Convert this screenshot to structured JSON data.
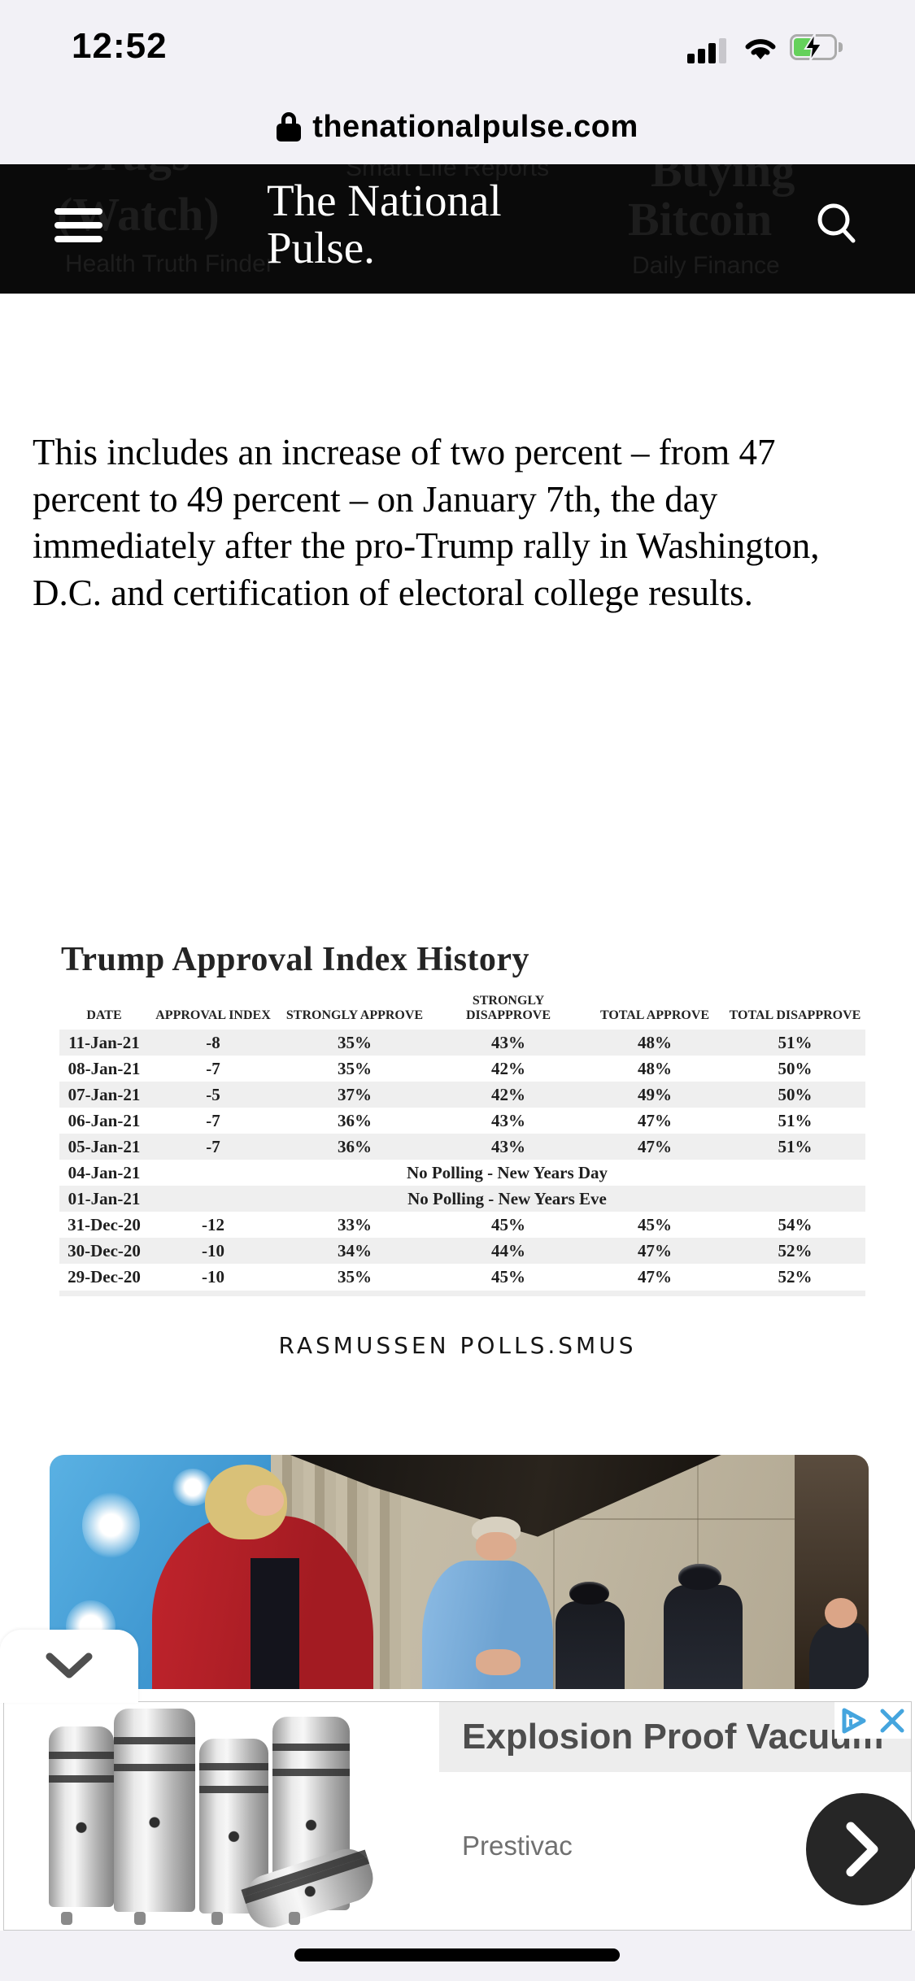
{
  "status_bar": {
    "time": "12:52"
  },
  "url_bar": {
    "domain": "thenationalpulse.com"
  },
  "header": {
    "title_line1": "The National",
    "title_line2": "Pulse.",
    "ghost": {
      "left_big_1": "Drugs",
      "left_big_2": "(Watch)",
      "left_small": "Health Truth Finder",
      "center_small": "Smart Life Reports",
      "right_big_1": "Buying",
      "right_big_2": "Bitcoin",
      "right_small": "Daily Finance"
    }
  },
  "article": {
    "paragraph": "This includes an increase of two percent – from 47 percent to 49 percent – on January 7th, the day immediately after the pro-Trump rally in Washington, D.C. and certification of electoral college results."
  },
  "table": {
    "title": "Trump Approval Index History",
    "columns": [
      "DATE",
      "APPROVAL INDEX",
      "STRONGLY APPROVE",
      "STRONGLY DISAPPROVE",
      "TOTAL APPROVE",
      "TOTAL DISAPPROVE"
    ],
    "rows": [
      [
        "11-Jan-21",
        "-8",
        "35%",
        "43%",
        "48%",
        "51%"
      ],
      [
        "08-Jan-21",
        "-7",
        "35%",
        "42%",
        "48%",
        "50%"
      ],
      [
        "07-Jan-21",
        "-5",
        "37%",
        "42%",
        "49%",
        "50%"
      ],
      [
        "06-Jan-21",
        "-7",
        "36%",
        "43%",
        "47%",
        "51%"
      ],
      [
        "05-Jan-21",
        "-7",
        "36%",
        "43%",
        "47%",
        "51%"
      ],
      [
        "04-Jan-21",
        "No Polling - New Years Day"
      ],
      [
        "01-Jan-21",
        "No Polling - New Years Eve"
      ],
      [
        "31-Dec-20",
        "-12",
        "33%",
        "45%",
        "45%",
        "54%"
      ],
      [
        "30-Dec-20",
        "-10",
        "34%",
        "44%",
        "47%",
        "52%"
      ],
      [
        "29-Dec-20",
        "-10",
        "35%",
        "45%",
        "47%",
        "52%"
      ]
    ],
    "caption": "RASMUSSEN POLLS.SMUS"
  },
  "ad": {
    "headline": "Explosion Proof Vacuum",
    "brand": "Prestivac"
  },
  "colors": {
    "header_bg": "#0a0a0a",
    "row_alt": "#efefef",
    "ad_blue": "#45a5de",
    "battery_green": "#65d15b"
  }
}
